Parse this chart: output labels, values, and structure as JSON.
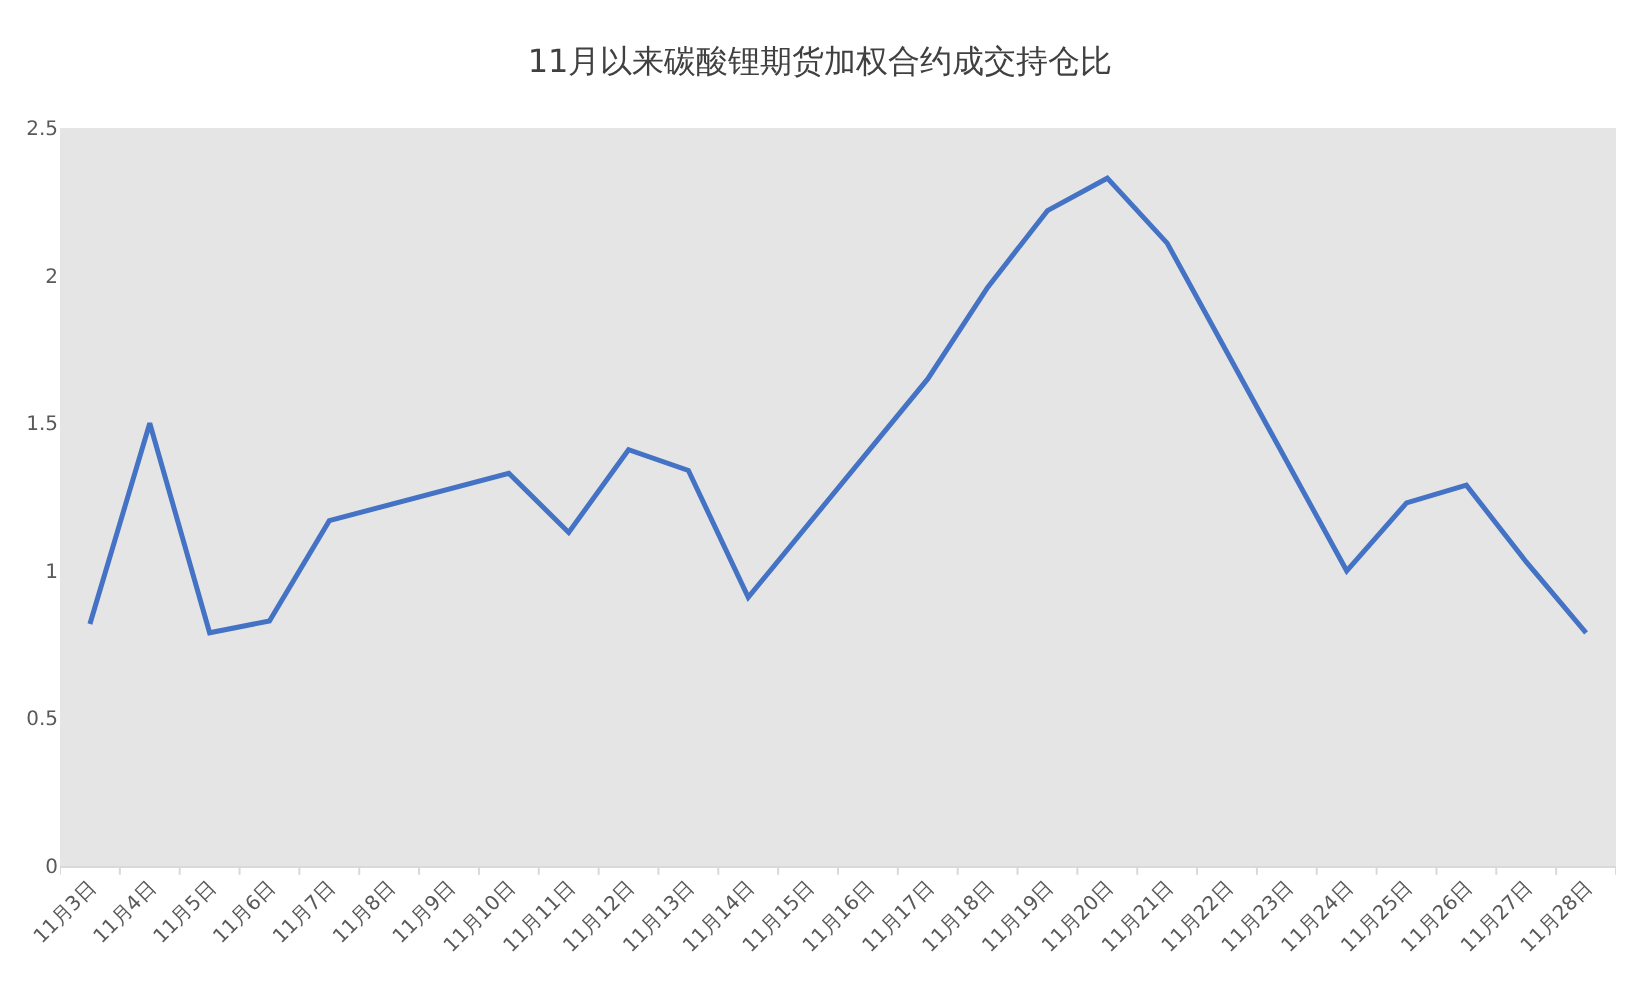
{
  "chart_data": {
    "type": "line",
    "title": "11月以来碳酸锂期货加权合约成交持仓比",
    "categories": [
      "11月3日",
      "11月4日",
      "11月5日",
      "11月6日",
      "11月7日",
      "11月8日",
      "11月9日",
      "11月10日",
      "11月11日",
      "11月12日",
      "11月13日",
      "11月14日",
      "11月15日",
      "11月16日",
      "11月17日",
      "11月18日",
      "11月19日",
      "11月20日",
      "11月21日",
      "11月22日",
      "11月23日",
      "11月24日",
      "11月25日",
      "11月26日",
      "11月27日",
      "11月28日"
    ],
    "series": [
      {
        "color": "#4472c4",
        "values": [
          0.82,
          1.5,
          0.79,
          0.83,
          1.17,
          null,
          null,
          1.33,
          1.13,
          1.41,
          1.34,
          0.91,
          null,
          null,
          1.65,
          1.96,
          2.22,
          2.33,
          2.11,
          null,
          null,
          1.0,
          1.23,
          1.29,
          1.03,
          0.79
        ]
      }
    ],
    "ylim": [
      0,
      2.5
    ],
    "yticks": [
      0,
      0.5,
      1,
      1.5,
      2,
      2.5
    ],
    "grid": false,
    "legend": false,
    "marker": "none",
    "line_style": "solid"
  }
}
